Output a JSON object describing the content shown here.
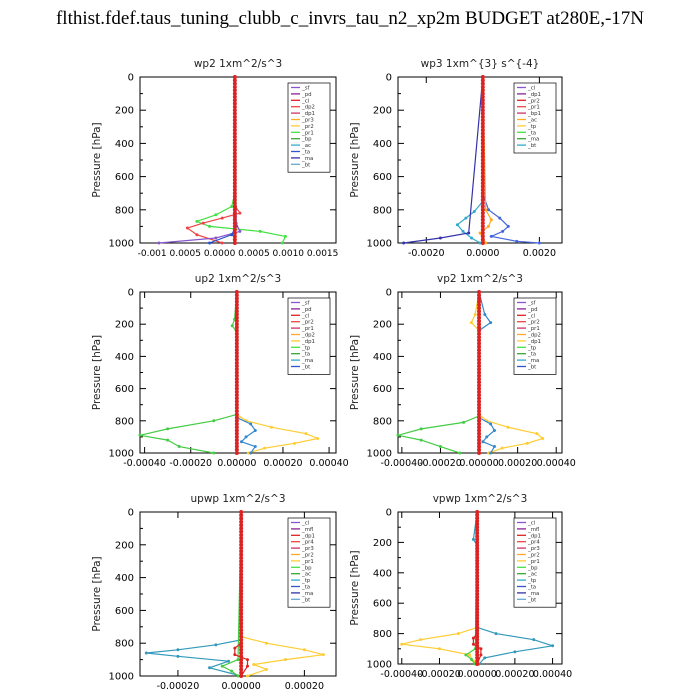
{
  "page": {
    "title": "flthist.fdef.taus_tuning_clubb_c_invrs_tau_n2_xp2m  BUDGET at280E,-17N"
  },
  "chart_data": [
    {
      "type": "line",
      "title": "wp2   1xm^2/s^3",
      "ylabel": "Pressure [hPa]",
      "xlim": [
        -0.0015,
        0.0016
      ],
      "ylim": [
        1000,
        0
      ],
      "yticks": [
        0,
        200,
        400,
        600,
        800,
        1000
      ],
      "xtick_text": "-0.001 0.0005 0.0000 0.0005 0.0010 0.0015",
      "legend": [
        "_sf",
        "_pd",
        "_cl",
        "_dp2",
        "_dp1",
        "_pr3",
        "_pr2",
        "_pr1",
        "_bp",
        "_ac",
        "_ta",
        "_ma",
        "_bt"
      ],
      "series": [
        {
          "name": "_pr1",
          "color": "#44e044",
          "y": [
            0,
            700,
            780,
            830,
            870,
            900,
            930,
            960,
            1000
          ],
          "x": [
            0,
            0,
            -5e-05,
            -0.0003,
            -0.0006,
            -0.0004,
            0.0004,
            0.0008,
            0.00075
          ]
        },
        {
          "name": "_dp1",
          "color": "#ee4444",
          "y": [
            0,
            780,
            820,
            850,
            880,
            910,
            950,
            1000
          ],
          "x": [
            0,
            1e-05,
            8e-05,
            -0.0002,
            -0.0005,
            -0.00075,
            -0.0006,
            -0.0002
          ]
        },
        {
          "name": "_pd",
          "color": "#8855cc",
          "y": [
            0,
            880,
            930,
            970,
            1000
          ],
          "x": [
            0,
            2e-05,
            8e-05,
            -0.0003,
            -0.0012
          ]
        },
        {
          "name": "_bt",
          "color": "#2255cc",
          "y": [
            0,
            900,
            950,
            1000
          ],
          "x": [
            0,
            2e-05,
            -5e-05,
            -0.0004
          ]
        },
        {
          "name": "_cl",
          "color": "#cc1111",
          "y": [
            0,
            1000
          ],
          "x": [
            0,
            0
          ]
        }
      ]
    },
    {
      "type": "line",
      "title": "wp3   1xm^{3} s^{-4}",
      "ylabel": "Pressure [hPa]",
      "xlim": [
        -0.003,
        0.0028
      ],
      "ylim": [
        1000,
        0
      ],
      "yticks": [
        0,
        200,
        400,
        600,
        800,
        1000
      ],
      "xticks": [
        -0.002,
        0.0,
        0.002
      ],
      "xticklabels": [
        "-0.0020",
        "0.0000",
        "0.0020"
      ],
      "legend": [
        "_cl",
        "_dp1",
        "_pr2",
        "_pr1",
        "_bp1",
        "_ac",
        "_tp",
        "_ta",
        "_ma",
        "_bt"
      ],
      "series": [
        {
          "name": "_ta",
          "color": "#4466dd",
          "y": [
            0,
            700,
            800,
            850,
            900,
            930,
            960,
            990,
            1000
          ],
          "x": [
            0,
            0,
            0.0002,
            0.0006,
            0.0009,
            0.0007,
            0.0003,
            0.0012,
            0.002
          ]
        },
        {
          "name": "_ac",
          "color": "#33aacc",
          "y": [
            0,
            750,
            810,
            850,
            890,
            930,
            970,
            1000
          ],
          "x": [
            0,
            0,
            -0.0003,
            -0.0006,
            -0.0009,
            -0.0007,
            -0.0004,
            -0.0001
          ]
        },
        {
          "name": "_tp",
          "color": "#3333aa",
          "y": [
            0,
            940,
            970,
            1000
          ],
          "x": [
            0,
            -0.0005,
            -0.0015,
            -0.0028
          ]
        },
        {
          "name": "_pr2",
          "color": "#ffaa22",
          "y": [
            0,
            800,
            860,
            900,
            940,
            1000
          ],
          "x": [
            0,
            0.0001,
            0.0003,
            0.0002,
            -0.0001,
            0.0001
          ]
        },
        {
          "name": "_cl",
          "color": "#cc1111",
          "y": [
            0,
            1000
          ],
          "x": [
            0,
            0
          ]
        }
      ]
    },
    {
      "type": "line",
      "title": "up2   1xm^2/s^3",
      "ylabel": "Pressure [hPa]",
      "xlim": [
        -0.00042,
        0.00043
      ],
      "ylim": [
        1000,
        0
      ],
      "yticks": [
        0,
        200,
        400,
        600,
        800,
        1000
      ],
      "xticks": [
        -0.0004,
        -0.0002,
        0.0,
        0.0002,
        0.0004
      ],
      "xticklabels": [
        "-0.00040",
        "-0.00020",
        "0.00000",
        "0.00020",
        "0.00040"
      ],
      "legend": [
        "_sf",
        "_pd",
        "_cl",
        "_pr2",
        "_pr1",
        "_dp2",
        "_dp1",
        "_tp",
        "_ta",
        "_ma",
        "_bt"
      ],
      "series": [
        {
          "name": "_dp1",
          "color": "#44cc44",
          "y": [
            0,
            170,
            210,
            250,
            760,
            800,
            850,
            890,
            920,
            960,
            1000
          ],
          "x": [
            0,
            -1e-05,
            -2e-05,
            0,
            0,
            -0.0001,
            -0.0003,
            -0.00042,
            -0.0003,
            -0.00025,
            -0.0001
          ]
        },
        {
          "name": "_pr2",
          "color": "#ffcc33",
          "y": [
            0,
            760,
            800,
            840,
            880,
            910,
            940,
            970,
            1000
          ],
          "x": [
            0,
            0,
            4e-05,
            0.00015,
            0.0003,
            0.00035,
            0.00025,
            0.00012,
            5e-05
          ]
        },
        {
          "name": "_tp",
          "color": "#3388cc",
          "y": [
            0,
            780,
            820,
            860,
            900,
            930,
            960,
            1000
          ],
          "x": [
            0,
            0,
            6e-05,
            8e-05,
            4e-05,
            2e-05,
            8e-05,
            6e-05
          ]
        },
        {
          "name": "_cl",
          "color": "#cc1111",
          "y": [
            0,
            1000
          ],
          "x": [
            0,
            0
          ]
        }
      ]
    },
    {
      "type": "line",
      "title": "vp2   1xm^2/s^3",
      "ylabel": "Pressure [hPa]",
      "xlim": [
        -0.00042,
        0.00043
      ],
      "ylim": [
        1000,
        0
      ],
      "yticks": [
        0,
        200,
        400,
        600,
        800,
        1000
      ],
      "xticks": [
        -0.0004,
        -0.0002,
        0.0,
        0.0002,
        0.0004
      ],
      "xticklabels": [
        "-0.00040",
        "-0.00020",
        "0.00000",
        "0.00020",
        "0.00040"
      ],
      "legend": [
        "_sf",
        "_pd",
        "_cl",
        "_pr2",
        "_pr1",
        "_dp2",
        "_dp1",
        "_tp",
        "_ta",
        "_ma",
        "_bt"
      ],
      "series": [
        {
          "name": "_dp1",
          "color": "#44cc44",
          "y": [
            0,
            770,
            810,
            850,
            890,
            920,
            960,
            1000
          ],
          "x": [
            0,
            0,
            -8e-05,
            -0.0003,
            -0.00042,
            -0.0003,
            -0.0002,
            -0.0001
          ]
        },
        {
          "name": "_pr2",
          "color": "#ffcc33",
          "y": [
            0,
            140,
            190,
            240,
            760,
            800,
            840,
            880,
            910,
            940,
            970,
            1000
          ],
          "x": [
            0,
            -2e-05,
            -4e-05,
            0,
            0,
            4e-05,
            0.00015,
            0.0003,
            0.00033,
            0.00025,
            0.00012,
            5e-05
          ]
        },
        {
          "name": "_tp",
          "color": "#3388cc",
          "y": [
            0,
            140,
            190,
            240,
            780,
            820,
            860,
            900,
            930,
            960,
            1000
          ],
          "x": [
            0,
            3e-05,
            6e-05,
            0,
            0,
            6e-05,
            8e-05,
            4e-05,
            2e-05,
            8e-05,
            6e-05
          ]
        },
        {
          "name": "_cl",
          "color": "#cc1111",
          "y": [
            0,
            1000
          ],
          "x": [
            0,
            0
          ]
        }
      ]
    },
    {
      "type": "line",
      "title": "upwp   1xm^2/s^3",
      "ylabel": "Pressure [hPa]",
      "xlim": [
        -0.00032,
        0.0003
      ],
      "ylim": [
        1000,
        0
      ],
      "yticks": [
        0,
        200,
        400,
        600,
        800,
        1000
      ],
      "xticks": [
        -0.0002,
        0.0,
        0.0002
      ],
      "xticklabels": [
        "-0.00020",
        "0.00000",
        "0.00020"
      ],
      "legend": [
        "_cl",
        "_mfl",
        "_dp1",
        "_pr4",
        "_pr3",
        "_pr2",
        "_pr1",
        "_bp",
        "_ac",
        "_tp",
        "_ta",
        "_ma",
        "_bt"
      ],
      "series": [
        {
          "name": "_ta",
          "color": "#3399bb",
          "y": [
            0,
            780,
            810,
            840,
            860,
            880,
            910,
            950,
            1000
          ],
          "x": [
            0,
            0,
            -8e-05,
            -0.0002,
            -0.0003,
            -0.0002,
            -4e-05,
            -0.0001,
            0
          ]
        },
        {
          "name": "_pr2",
          "color": "#ffcc33",
          "y": [
            0,
            760,
            800,
            840,
            870,
            900,
            930,
            960,
            1000
          ],
          "x": [
            0,
            0,
            8e-05,
            0.0002,
            0.00026,
            0.00014,
            4e-05,
            8e-05,
            2e-05
          ]
        },
        {
          "name": "_pr1",
          "color": "#44cc44",
          "y": [
            0,
            900,
            940,
            970,
            1000
          ],
          "x": [
            0,
            -1e-05,
            -6e-05,
            -3e-05,
            -1e-05
          ]
        },
        {
          "name": "_mfl",
          "color": "#882299",
          "y": [
            0,
            1000
          ],
          "x": [
            0,
            0
          ]
        },
        {
          "name": "_dp1",
          "color": "#dd2222",
          "y": [
            0,
            800,
            830,
            870,
            900,
            940,
            1000
          ],
          "x": [
            0,
            0,
            -2e-05,
            -2e-05,
            2e-05,
            2e-05,
            0
          ]
        }
      ]
    },
    {
      "type": "line",
      "title": "vpwp   1xm^2/s^3",
      "ylabel": "Pressure [hPa]",
      "xlim": [
        -0.00042,
        0.00045
      ],
      "ylim": [
        1000,
        0
      ],
      "yticks": [
        0,
        200,
        400,
        600,
        800,
        1000
      ],
      "xticks": [
        -0.0004,
        -0.0002,
        0.0,
        0.0002,
        0.0004
      ],
      "xticklabels": [
        "-0.00040",
        "-0.00020",
        "0.00000",
        "0.00020",
        "0.00040"
      ],
      "legend": [
        "_cl",
        "_mfl",
        "_dp1",
        "_pr4",
        "_pr3",
        "_pr2",
        "_pr1",
        "_bp",
        "_ac",
        "_tp",
        "_ta",
        "_ma",
        "_bt"
      ],
      "series": [
        {
          "name": "_pr2",
          "color": "#ffcc33",
          "y": [
            0,
            760,
            800,
            840,
            870,
            900,
            940,
            980,
            1000
          ],
          "x": [
            0,
            0,
            -0.0001,
            -0.0003,
            -0.0004,
            -0.0002,
            -4e-05,
            -2e-05,
            0
          ]
        },
        {
          "name": "_ta",
          "color": "#3399bb",
          "y": [
            0,
            180,
            220,
            760,
            800,
            840,
            880,
            920,
            960,
            1000
          ],
          "x": [
            0,
            -2e-05,
            0,
            0,
            0.0001,
            0.0003,
            0.0004,
            0.0002,
            4e-05,
            1e-05
          ]
        },
        {
          "name": "_pr1",
          "color": "#44cc44",
          "y": [
            0,
            900,
            940,
            970,
            1000
          ],
          "x": [
            0,
            -1e-05,
            -6e-05,
            -3e-05,
            -1e-05
          ]
        },
        {
          "name": "_mfl",
          "color": "#882299",
          "y": [
            0,
            1000
          ],
          "x": [
            0,
            0
          ]
        },
        {
          "name": "_dp1",
          "color": "#dd2222",
          "y": [
            0,
            800,
            830,
            870,
            900,
            940,
            1000
          ],
          "x": [
            0,
            0,
            -2e-05,
            -2e-05,
            2e-05,
            2e-05,
            0
          ]
        }
      ]
    }
  ]
}
